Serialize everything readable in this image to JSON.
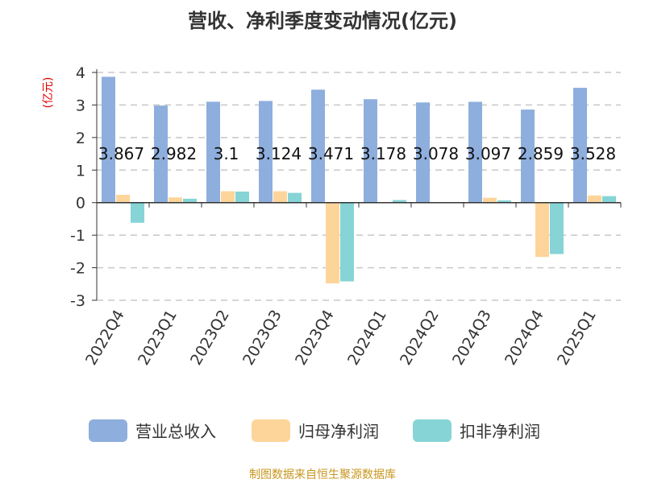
{
  "title": "营收、净利季度变动情况(亿元)",
  "source": "制图数据来自恒生聚源数据库",
  "chart_data": {
    "type": "bar",
    "unit_label": "(亿元)",
    "categories": [
      "2022Q4",
      "2023Q1",
      "2023Q2",
      "2023Q3",
      "2023Q4",
      "2024Q1",
      "2024Q2",
      "2024Q3",
      "2024Q4",
      "2025Q1"
    ],
    "ylim": [
      -3,
      4
    ],
    "yticks": [
      4,
      3,
      2,
      1,
      0,
      -1,
      -2,
      -3
    ],
    "grid": true,
    "legend_position": "bottom",
    "series": [
      {
        "name": "营业总收入",
        "color": "#8eaedd",
        "values": [
          3.867,
          2.982,
          3.1,
          3.124,
          3.471,
          3.178,
          3.078,
          3.097,
          2.859,
          3.528
        ],
        "labels": [
          "3.867",
          "2.982",
          "3.1",
          "3.124",
          "3.471",
          "3.178",
          "3.078",
          "3.097",
          "2.859",
          "3.528"
        ]
      },
      {
        "name": "归母净利润",
        "color": "#fdd59a",
        "values": [
          0.24,
          0.16,
          0.35,
          0.35,
          -2.48,
          0.0,
          0.0,
          0.15,
          -1.67,
          0.22
        ]
      },
      {
        "name": "扣非净利润",
        "color": "#86d4d6",
        "values": [
          -0.62,
          0.12,
          0.34,
          0.3,
          -2.42,
          0.08,
          0.0,
          0.07,
          -1.58,
          0.2
        ]
      }
    ]
  }
}
